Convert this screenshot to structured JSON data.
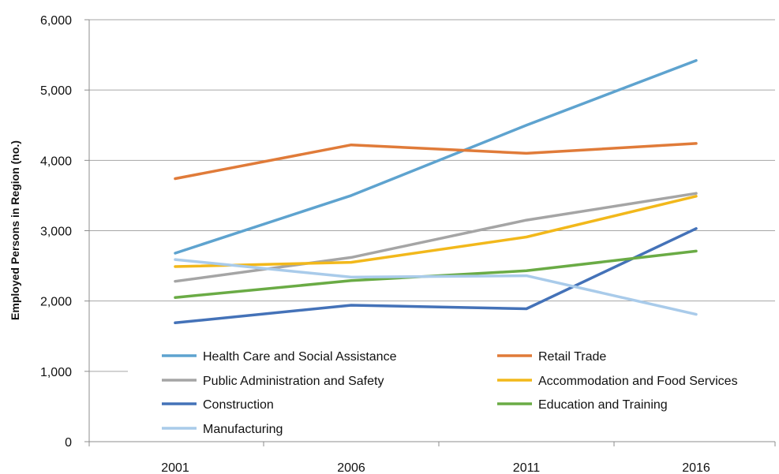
{
  "chart_data": {
    "type": "line",
    "title": "",
    "xlabel": "",
    "ylabel": "Employed Persons in Region (no.)",
    "categories": [
      "2001",
      "2006",
      "2011",
      "2016"
    ],
    "ylim": [
      0,
      6000
    ],
    "yticks": [
      0,
      1000,
      2000,
      3000,
      4000,
      5000,
      6000
    ],
    "ytick_labels": [
      "0",
      "1,000",
      "2,000",
      "3,000",
      "4,000",
      "5,000",
      "6,000"
    ],
    "grid": "horizontal",
    "legend_position": "bottom",
    "series": [
      {
        "name": "Health Care and Social Assistance",
        "color": "#5ea3cf",
        "values": [
          2680,
          3500,
          4500,
          5420
        ]
      },
      {
        "name": "Retail Trade",
        "color": "#e07b39",
        "values": [
          3740,
          4220,
          4100,
          4240
        ]
      },
      {
        "name": "Public Administration and Safety",
        "color": "#a5a5a5",
        "values": [
          2280,
          2620,
          3150,
          3530
        ]
      },
      {
        "name": "Accommodation and Food Services",
        "color": "#f2b81b",
        "values": [
          2490,
          2550,
          2910,
          3490
        ]
      },
      {
        "name": "Construction",
        "color": "#4472b8",
        "values": [
          1690,
          1940,
          1890,
          3030
        ]
      },
      {
        "name": "Education and Training",
        "color": "#6aab45",
        "values": [
          2050,
          2290,
          2430,
          2710
        ]
      },
      {
        "name": "Manufacturing",
        "color": "#a9cbea",
        "values": [
          2590,
          2340,
          2360,
          1810
        ]
      }
    ]
  }
}
